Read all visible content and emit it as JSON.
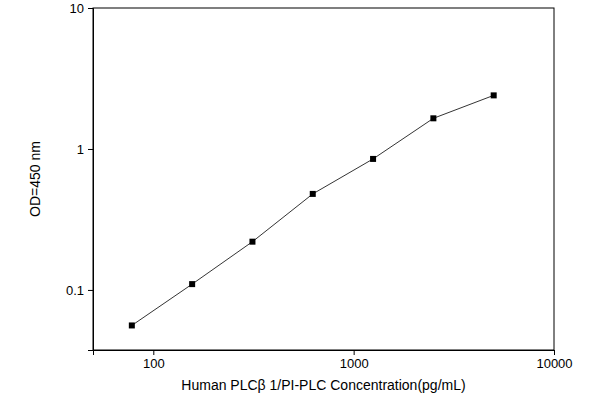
{
  "chart_data": {
    "type": "line",
    "x_label": "Human PLCβ 1/PI-PLC Concentration(pg/mL)",
    "y_label": "OD=450 nm",
    "x": [
      78.125,
      156.25,
      312.5,
      625,
      1250,
      2500,
      5000
    ],
    "values": [
      0.056,
      0.11,
      0.22,
      0.48,
      0.85,
      1.65,
      2.4
    ],
    "color": "#000000",
    "marker": "square",
    "log": true,
    "xlim": [
      50,
      10000
    ],
    "ylim": [
      0.0375,
      10
    ],
    "xticks": [
      100,
      1000,
      10000
    ],
    "yticks": [
      0.1,
      1,
      10
    ]
  }
}
